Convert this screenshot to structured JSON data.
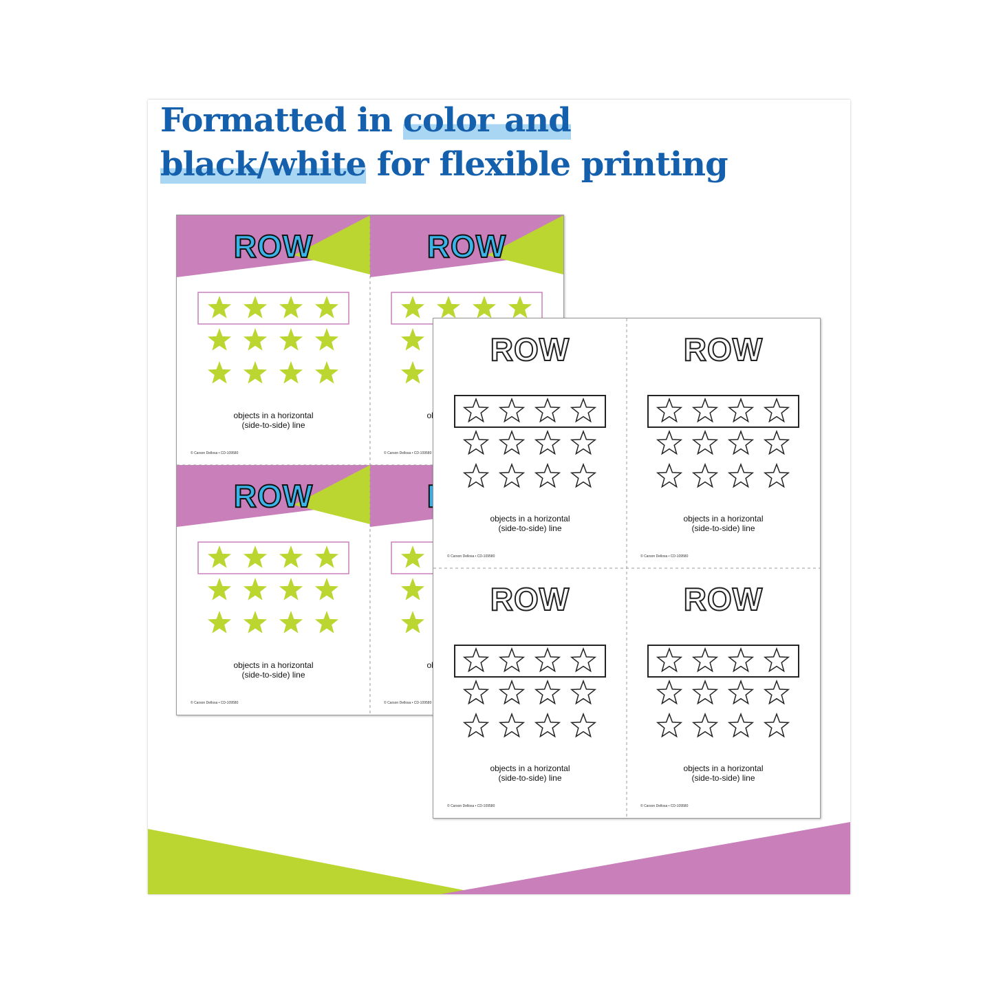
{
  "headline": {
    "line1_plain": "Formatted in ",
    "line1_highlight": "color and",
    "line2_highlight": "black/white",
    "line2_plain": " for flexible printing"
  },
  "card": {
    "word": "ROW",
    "definition_line1": "objects in a horizontal",
    "definition_line2": "(side-to-side) line",
    "copyright": "© Carson Dellosa • CD-109580",
    "star_rows": 3,
    "stars_per_row": 4
  },
  "colors": {
    "title_blue": "#1560ad",
    "highlight_blue": "#a9d7f3",
    "purple": "#c97fba",
    "lime": "#bcd631",
    "row_blue": "#3ab4e8"
  },
  "sheets": [
    {
      "style": "color"
    },
    {
      "style": "black-white"
    }
  ]
}
